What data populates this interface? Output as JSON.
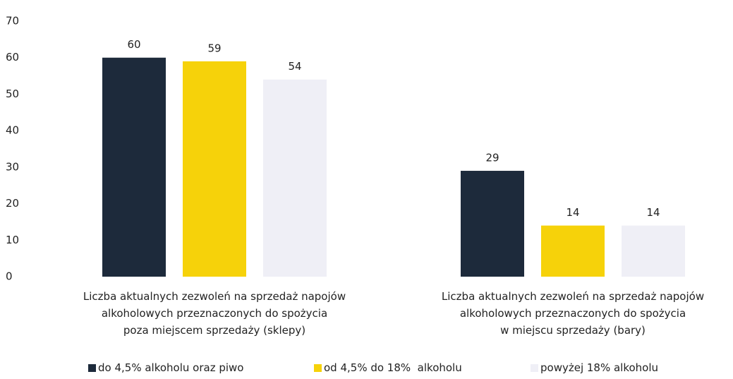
{
  "chart_data": {
    "type": "bar",
    "categories": [
      "Liczba aktualnych zezwoleń na sprzedaż napojów\nalkoholowych przeznaczonych do spożycia\npoza  miejscem sprzedaży (sklepy)",
      "Liczba aktualnych zezwoleń na sprzedaż napojów\nalkoholowych przeznaczonych do spożycia\nw miejscu sprzedaży (bary)"
    ],
    "series": [
      {
        "name": "do 4,5% alkoholu oraz piwo",
        "color": "#1d2a3b",
        "values": [
          60,
          29
        ]
      },
      {
        "name": "od 4,5% do 18%  alkoholu",
        "color": "#f6d20a",
        "values": [
          59,
          14
        ]
      },
      {
        "name": "powyżej 18% alkoholu",
        "color": "#efeff6",
        "values": [
          54,
          14
        ]
      }
    ],
    "ylim": [
      0,
      70
    ],
    "yticks": [
      0,
      10,
      20,
      30,
      40,
      50,
      60,
      70
    ],
    "grid": false,
    "legend": "bottom"
  }
}
